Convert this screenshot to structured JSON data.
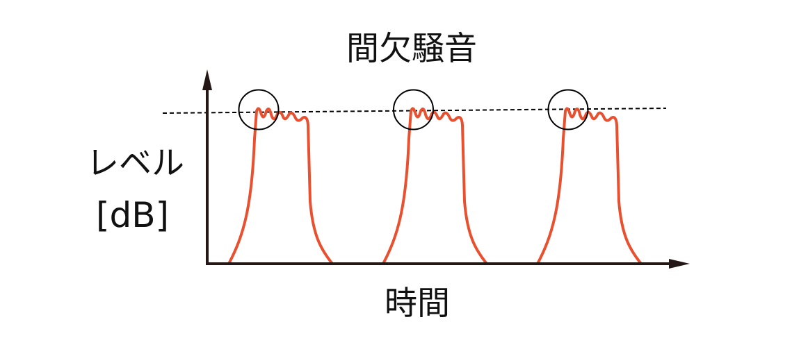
{
  "title": "間欠騒音",
  "y_axis_label": [
    "レベル",
    "[dB]"
  ],
  "x_axis_label": "時間",
  "colors": {
    "pulse": "#e8502f",
    "axis": "#231815",
    "reference": "#000000"
  },
  "pulse_count": 3,
  "reference_line": "dashed",
  "peak_markers": "circle"
}
